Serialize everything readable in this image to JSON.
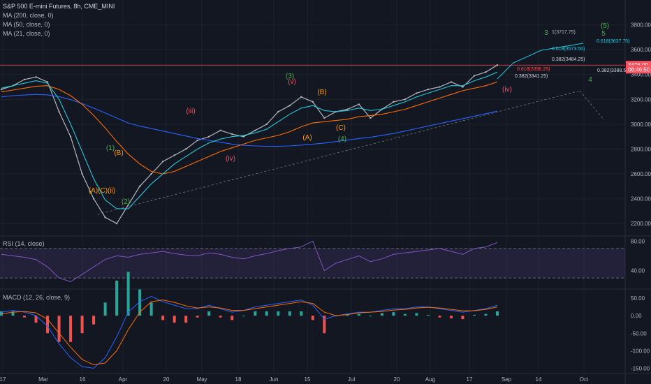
{
  "chart_data": {
    "type": "line",
    "title": "S&P 500 E-mini Futures, 8h, CME_MINI",
    "indicators": [
      "MA (200, close, 0)",
      "MA (50, close, 0)",
      "MA (21, close, 0)"
    ],
    "price_axis": {
      "range": [
        2100,
        4000
      ],
      "ticks": [
        2200,
        2400,
        2600,
        2800,
        3000,
        3200,
        3400,
        3600,
        3800
      ]
    },
    "x_ticks": [
      "17",
      "Mar",
      "16",
      "Apr",
      "20",
      "May",
      "18",
      "Jun",
      "15",
      "Jul",
      "20",
      "Aug",
      "17",
      "Sep",
      "14",
      "Oct"
    ],
    "price_labels": [
      {
        "text": "3476.00",
        "value": 3476,
        "color": "#f7525f"
      },
      {
        "text": "06:46:50",
        "value": 3442,
        "color": "#f7525f"
      }
    ],
    "series": [
      {
        "name": "Price",
        "color": "#b2b5be",
        "values": [
          3280,
          3310,
          3360,
          3380,
          3340,
          3100,
          2900,
          2600,
          2400,
          2250,
          2200,
          2350,
          2500,
          2600,
          2700,
          2750,
          2800,
          2870,
          2900,
          2950,
          2920,
          2900,
          2950,
          3000,
          3100,
          3150,
          3220,
          3180,
          3050,
          3100,
          3120,
          3160,
          3050,
          3120,
          3180,
          3200,
          3250,
          3280,
          3300,
          3340,
          3300,
          3390,
          3420,
          3476
        ]
      },
      {
        "name": "MA (200, close, 0)",
        "color": "#2962ff",
        "values": [
          3220,
          3230,
          3235,
          3240,
          3236,
          3222,
          3198,
          3166,
          3130,
          3090,
          3050,
          3010,
          2985,
          2965,
          2945,
          2925,
          2905,
          2885,
          2870,
          2855,
          2840,
          2830,
          2825,
          2822,
          2822,
          2825,
          2832,
          2840,
          2848,
          2860,
          2872,
          2885,
          2895,
          2910,
          2925,
          2945,
          2965,
          2985,
          3005,
          3025,
          3045,
          3065,
          3085,
          3105
        ]
      },
      {
        "name": "MA (50, close, 0)",
        "color": "#ff6d00",
        "values": [
          3260,
          3275,
          3290,
          3305,
          3310,
          3280,
          3230,
          3160,
          3070,
          2970,
          2860,
          2760,
          2680,
          2620,
          2600,
          2620,
          2660,
          2700,
          2740,
          2780,
          2810,
          2840,
          2870,
          2890,
          2910,
          2940,
          2980,
          3010,
          3020,
          3030,
          3040,
          3060,
          3070,
          3080,
          3100,
          3120,
          3150,
          3180,
          3210,
          3240,
          3270,
          3290,
          3310,
          3340
        ]
      },
      {
        "name": "MA (21, close, 0)",
        "color": "#26c6da",
        "values": [
          3290,
          3310,
          3330,
          3350,
          3330,
          3200,
          3000,
          2780,
          2560,
          2390,
          2320,
          2320,
          2420,
          2520,
          2600,
          2680,
          2740,
          2800,
          2850,
          2880,
          2900,
          2910,
          2930,
          2960,
          3020,
          3080,
          3130,
          3150,
          3110,
          3100,
          3110,
          3130,
          3110,
          3120,
          3150,
          3180,
          3220,
          3250,
          3280,
          3310,
          3310,
          3350,
          3380,
          3420
        ]
      }
    ],
    "wave_labels": [
      {
        "text": "(1)",
        "color": "#4caf50"
      },
      {
        "text": "(B)",
        "color": "#ff9800"
      },
      {
        "text": "(A)(C)(ii)",
        "color": "#ff9800"
      },
      {
        "text": "(2)",
        "color": "#4caf50"
      },
      {
        "text": "(iii)",
        "color": "#f7525f"
      },
      {
        "text": "(iv)",
        "color": "#f7525f"
      },
      {
        "text": "(3)",
        "color": "#4caf50"
      },
      {
        "text": "(v)",
        "color": "#f7525f"
      },
      {
        "text": "(B)",
        "color": "#ff9800"
      },
      {
        "text": "(A)",
        "color": "#ff9800"
      },
      {
        "text": "(C)",
        "color": "#ff9800"
      },
      {
        "text": "(4)",
        "color": "#4caf50"
      },
      {
        "text": "(iv)",
        "color": "#f7525f"
      },
      {
        "text": "3",
        "color": "#4caf50"
      },
      {
        "text": "(5)",
        "color": "#4caf50"
      },
      {
        "text": "5",
        "color": "#4caf50"
      },
      {
        "text": "4",
        "color": "#4caf50"
      }
    ],
    "fib_labels": [
      {
        "text": "1(3717.75)",
        "color": "#b2b5be"
      },
      {
        "text": "0.618(3637.75)",
        "color": "#26c6da"
      },
      {
        "text": "0.618(3573.50)",
        "color": "#26c6da"
      },
      {
        "text": "0.382(3484.25)",
        "color": "#d1d4dc"
      },
      {
        "text": "0.382(3388.50)",
        "color": "#d1d4dc"
      },
      {
        "text": "0.382(3341.25)",
        "color": "#d1d4dc"
      },
      {
        "text": "0.618(3396.25)",
        "color": "#f7525f"
      }
    ],
    "rsi": {
      "title": "RSI (14, close)",
      "band": [
        30,
        70
      ],
      "ticks": [
        80.0,
        40.0
      ],
      "range": [
        15,
        85
      ],
      "values": [
        62,
        60,
        58,
        55,
        45,
        30,
        25,
        35,
        45,
        55,
        60,
        58,
        62,
        64,
        66,
        63,
        61,
        60,
        64,
        62,
        58,
        56,
        60,
        63,
        67,
        70,
        72,
        80,
        40,
        50,
        55,
        60,
        52,
        56,
        62,
        64,
        66,
        68,
        70,
        66,
        62,
        70,
        72,
        78
      ]
    },
    "macd": {
      "title": "MACD (12, 26, close, 9)",
      "ticks": [
        50.0,
        0.0,
        -50.0,
        -100.0,
        -150.0
      ],
      "range": [
        -165,
        70
      ],
      "macd_values": [
        10,
        15,
        10,
        0,
        -30,
        -80,
        -120,
        -145,
        -150,
        -120,
        -60,
        10,
        40,
        55,
        40,
        30,
        20,
        20,
        30,
        20,
        10,
        15,
        25,
        30,
        35,
        40,
        45,
        30,
        -10,
        0,
        5,
        10,
        10,
        15,
        20,
        20,
        25,
        25,
        20,
        15,
        10,
        15,
        20,
        30
      ],
      "signal_values": [
        5,
        10,
        12,
        8,
        -10,
        -50,
        -90,
        -125,
        -140,
        -135,
        -100,
        -40,
        10,
        40,
        45,
        38,
        28,
        22,
        25,
        22,
        15,
        15,
        20,
        25,
        30,
        35,
        40,
        35,
        10,
        0,
        3,
        8,
        10,
        12,
        16,
        18,
        22,
        24,
        22,
        18,
        14,
        14,
        18,
        25
      ]
    }
  }
}
